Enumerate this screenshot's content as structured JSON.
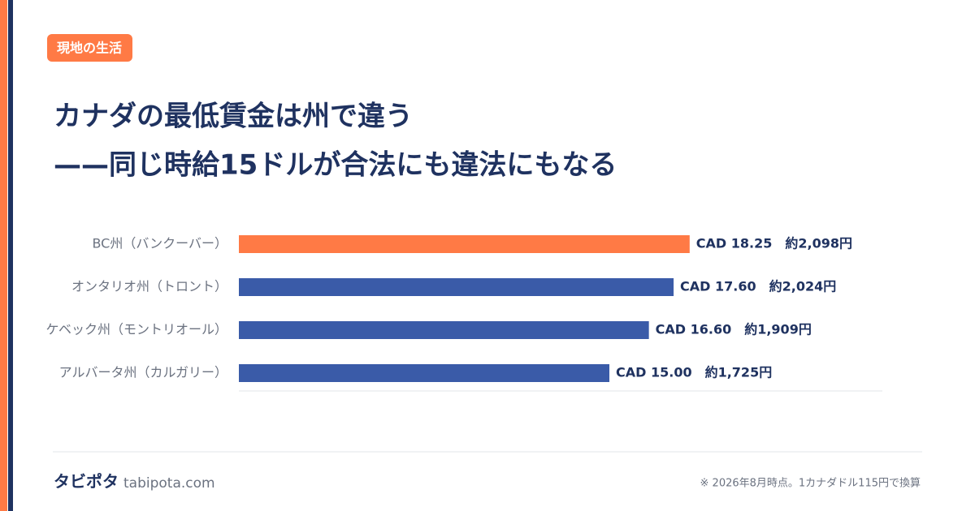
{
  "tag": "現地の生活",
  "chart_data": {
    "type": "bar",
    "orientation": "horizontal",
    "title": [
      "カナダの最低賃金は州で違う",
      "——同じ時給15ドルが合法にも違法にもなる"
    ],
    "categories": [
      "BC州（バンクーバー）",
      "オンタリオ州（トロント）",
      "ケベック州（モントリオール）",
      "アルバータ州（カルガリー）"
    ],
    "values": [
      18.25,
      17.6,
      16.6,
      15.0
    ],
    "value_labels": [
      "CAD 18.25　約2,098円",
      "CAD 17.60　約2,024円",
      "CAD 16.60　約1,909円",
      "CAD 15.00　約1,725円"
    ],
    "colors": [
      "#ff7a45",
      "#3a5ba8",
      "#3a5ba8",
      "#3a5ba8"
    ]
  },
  "footer": {
    "brand": "タビポタ",
    "site": "tabipota.com",
    "note": "※ 2026年8月時点。1カナダドル115円で換算"
  }
}
